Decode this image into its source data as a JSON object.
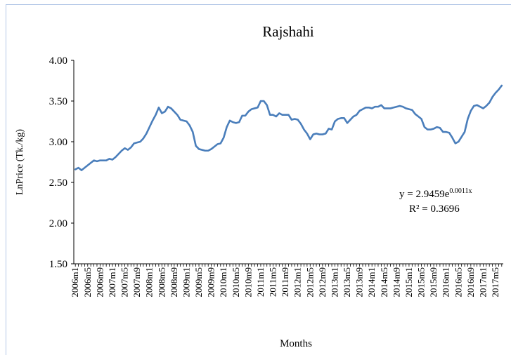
{
  "chart_data": {
    "type": "line",
    "title": "Rajshahi",
    "y_label": "LnPrice (Tk./kg)",
    "x_label": "Months",
    "categories": [
      "2006m1",
      null,
      null,
      null,
      "2006m5",
      null,
      null,
      null,
      "2006m9",
      null,
      null,
      null,
      "2007m1",
      null,
      null,
      null,
      "2007m5",
      null,
      null,
      null,
      "2007m9",
      null,
      null,
      null,
      "2008m1",
      null,
      null,
      null,
      "2008m5",
      null,
      null,
      null,
      "2008m9",
      null,
      null,
      null,
      "2009m1",
      null,
      null,
      null,
      "2009m5",
      null,
      null,
      null,
      "2009m9",
      null,
      null,
      null,
      "2010m1",
      null,
      null,
      null,
      "2010m5",
      null,
      null,
      null,
      "2010m9",
      null,
      null,
      null,
      "2011m1",
      null,
      null,
      null,
      "2011m5",
      null,
      null,
      null,
      "2011m9",
      null,
      null,
      null,
      "2012m1",
      null,
      null,
      null,
      "2012m5",
      null,
      null,
      null,
      "2012m9",
      null,
      null,
      null,
      "2013m1",
      null,
      null,
      null,
      "2013m5",
      null,
      null,
      null,
      "2013m9",
      null,
      null,
      null,
      "2014m1",
      null,
      null,
      null,
      "2014m5",
      null,
      null,
      null,
      "2014m9",
      null,
      null,
      null,
      "2015m1",
      null,
      null,
      null,
      "2015m5",
      null,
      null,
      null,
      "2015m9",
      null,
      null,
      null,
      "2016m1",
      null,
      null,
      null,
      "2016m5",
      null,
      null,
      null,
      "2016m9",
      null,
      null,
      null,
      "2017m1",
      null,
      null,
      null,
      "2017m5",
      null,
      null
    ],
    "series": [
      {
        "name": "LnPrice",
        "color": "#4a7ebb",
        "values": [
          2.66,
          2.68,
          2.65,
          2.68,
          2.71,
          2.74,
          2.77,
          2.76,
          2.77,
          2.77,
          2.77,
          2.79,
          2.78,
          2.81,
          2.85,
          2.89,
          2.92,
          2.9,
          2.93,
          2.98,
          2.99,
          3.0,
          3.04,
          3.1,
          3.18,
          3.26,
          3.33,
          3.42,
          3.35,
          3.37,
          3.43,
          3.41,
          3.37,
          3.33,
          3.27,
          3.26,
          3.25,
          3.2,
          3.12,
          2.95,
          2.91,
          2.9,
          2.89,
          2.89,
          2.91,
          2.94,
          2.97,
          2.98,
          3.05,
          3.18,
          3.26,
          3.24,
          3.23,
          3.24,
          3.32,
          3.32,
          3.37,
          3.4,
          3.41,
          3.42,
          3.5,
          3.5,
          3.45,
          3.33,
          3.33,
          3.31,
          3.35,
          3.33,
          3.33,
          3.33,
          3.27,
          3.28,
          3.27,
          3.22,
          3.15,
          3.1,
          3.03,
          3.09,
          3.1,
          3.09,
          3.09,
          3.1,
          3.16,
          3.15,
          3.25,
          3.28,
          3.29,
          3.29,
          3.23,
          3.27,
          3.31,
          3.33,
          3.38,
          3.4,
          3.42,
          3.42,
          3.41,
          3.43,
          3.43,
          3.45,
          3.41,
          3.41,
          3.41,
          3.42,
          3.43,
          3.44,
          3.43,
          3.41,
          3.4,
          3.39,
          3.34,
          3.31,
          3.28,
          3.18,
          3.15,
          3.15,
          3.16,
          3.18,
          3.17,
          3.12,
          3.12,
          3.11,
          3.05,
          2.98,
          3.0,
          3.06,
          3.12,
          3.28,
          3.38,
          3.44,
          3.45,
          3.43,
          3.41,
          3.44,
          3.48,
          3.55,
          3.6,
          3.64,
          3.69
        ]
      }
    ],
    "ylim": [
      1.5,
      4
    ],
    "yticks": [
      {
        "value": 1.5,
        "label": "1.50"
      },
      {
        "value": 2,
        "label": "2.00"
      },
      {
        "value": 2.5,
        "label": "2.50"
      },
      {
        "value": 3,
        "label": "3.00"
      },
      {
        "value": 3.5,
        "label": "3.50"
      },
      {
        "value": 4,
        "label": "4.00"
      }
    ],
    "grid": false,
    "annotations": [
      {
        "text": "y = 2.9459e",
        "superscript": "0.0011x"
      },
      {
        "text": "R² = 0.3696"
      }
    ]
  }
}
